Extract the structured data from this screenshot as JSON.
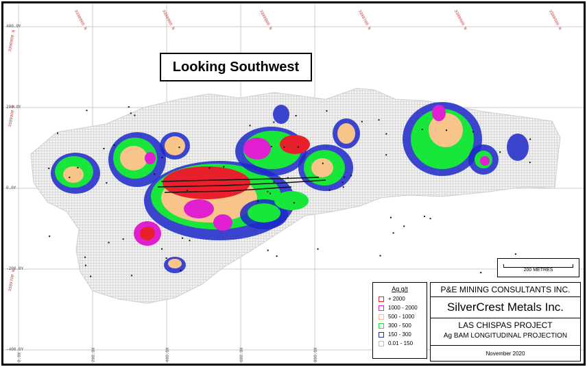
{
  "view_label": "Looking Southwest",
  "scale": {
    "label": "200 METRES"
  },
  "legend": {
    "title": "Ag g/t",
    "items": [
      {
        "label": "+ 2000",
        "color": "#e8202b"
      },
      {
        "label": "1000 - 2000",
        "color": "#e020d0"
      },
      {
        "label": "500 - 1000",
        "color": "#f7c48a"
      },
      {
        "label": "300 - 500",
        "color": "#18e63a"
      },
      {
        "label": "150 - 300",
        "color": "#1c28c8"
      },
      {
        "label": "0.01 - 150",
        "color": "#bdbdbd"
      }
    ]
  },
  "title_block": {
    "consultant": "P&E MINING CONSULTANTS INC.",
    "company": "SilverCrest Metals Inc.",
    "project": "LAS CHISPAS PROJECT",
    "projection": "Ag BAM LONGITUDINAL PROJECTION",
    "date": "November 2020"
  },
  "coordinates": {
    "top": [
      "3390000 N",
      "3389900 N",
      "3389800 N",
      "3389700 N",
      "3389600 N",
      "3389500 N",
      "3389400 N"
    ],
    "left": [
      "3390000 N",
      "3389900 N",
      "3389700 N"
    ],
    "elevations": [
      "400.0Y",
      "200.0Y",
      "0.0Y",
      "-200.0Y",
      "-400.0Y"
    ],
    "bottom": [
      "0.0X",
      "200.0X",
      "400.0X",
      "600.0X",
      "800.0X"
    ]
  }
}
